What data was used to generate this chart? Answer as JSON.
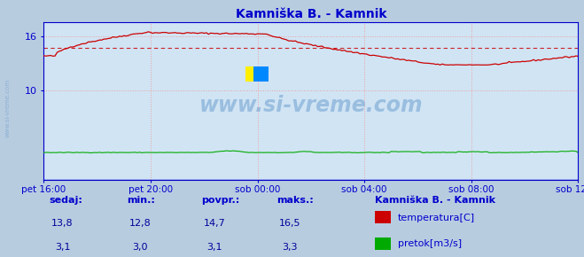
{
  "title": "Kamniška B. - Kamnik",
  "title_color": "#0000cc",
  "bg_color": "#d0e4f4",
  "outer_bg_color": "#b8cce0",
  "grid_color": "#f0a0a0",
  "axis_color": "#0000cc",
  "temp_color": "#cc0000",
  "flow_color": "#00aa00",
  "avg_line_color": "#cc0000",
  "border_color": "#0000cc",
  "x_tick_labels": [
    "pet 16:00",
    "pet 20:00",
    "sob 00:00",
    "sob 04:00",
    "sob 08:00",
    "sob 12:00"
  ],
  "x_tick_positions": [
    0,
    48,
    96,
    144,
    192,
    240
  ],
  "ylim": [
    0,
    17.6
  ],
  "yticks": [
    10,
    16
  ],
  "n_points": 241,
  "temp_avg": 14.7,
  "flow_min": 3.0,
  "flow_max": 3.3,
  "watermark": "www.si-vreme.com",
  "watermark_color": "#6699cc",
  "watermark_alpha": 0.5,
  "legend_title": "Kamniška B. - Kamnik",
  "legend_title_color": "#0000cc",
  "label_color": "#0000cc",
  "value_color": "#000099",
  "footer_labels": [
    "sedaj:",
    "min.:",
    "povpr.:",
    "maks.:"
  ],
  "footer_temp": [
    "13,8",
    "12,8",
    "14,7",
    "16,5"
  ],
  "footer_flow": [
    "3,1",
    "3,0",
    "3,1",
    "3,3"
  ],
  "series_labels": [
    "temperatura[C]",
    "pretok[m3/s]"
  ]
}
